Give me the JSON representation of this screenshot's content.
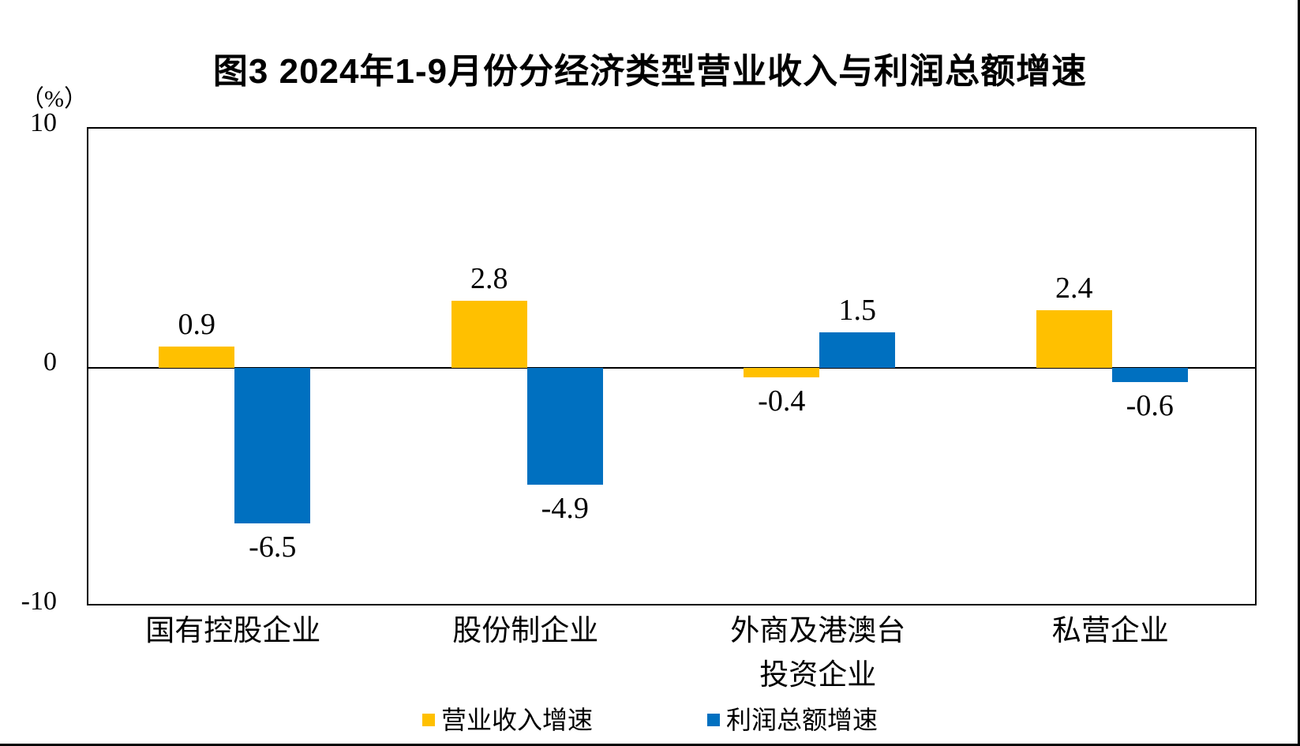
{
  "title": "图3 2024年1-9月份分经济类型营业收入与利润总额增速",
  "axis": {
    "unit_label": "（%）",
    "tick_labels": [
      "10",
      "0",
      "-10"
    ]
  },
  "legend": {
    "items": [
      {
        "label": "营业收入增速",
        "color": "#FFC000"
      },
      {
        "label": "利润总额增速",
        "color": "#0070C0"
      }
    ]
  },
  "chart_data": {
    "type": "bar",
    "title": "图3 2024年1-9月份分经济类型营业收入与利润总额增速",
    "categories": [
      "国有控股企业",
      "股份制企业",
      "外商及港澳台\n投资企业",
      "私营企业"
    ],
    "series": [
      {
        "name": "营业收入增速",
        "color": "#FFC000",
        "values": [
          0.9,
          2.8,
          -0.4,
          2.4
        ]
      },
      {
        "name": "利润总额增速",
        "color": "#0070C0",
        "values": [
          -6.5,
          -4.9,
          1.5,
          -0.6
        ]
      }
    ],
    "xlabel": "",
    "ylabel": "（%）",
    "ylim": [
      -10,
      10
    ],
    "yticks": [
      10,
      0,
      -10
    ],
    "grid": false,
    "legend_position": "bottom",
    "value_labels": true,
    "baseline": 0
  }
}
